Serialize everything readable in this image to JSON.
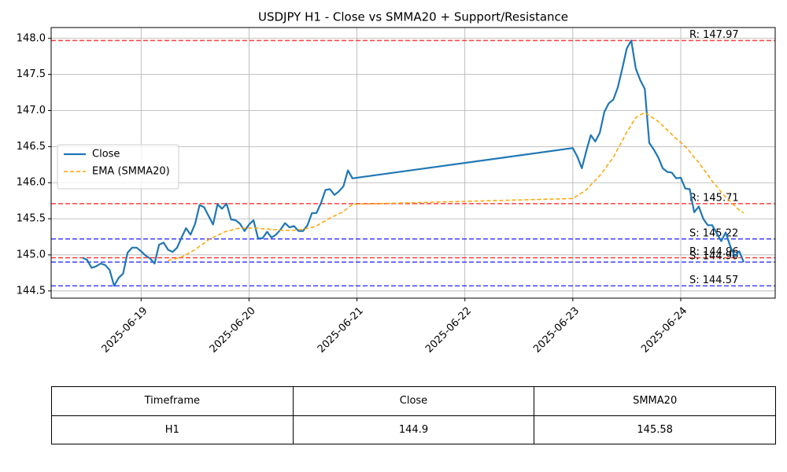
{
  "chart_data": {
    "type": "line",
    "title": "USDJPY H1 - Close vs SMMA20 + Support/Resistance",
    "x": [
      "2025-06-18 11:00",
      "2025-06-18 12:00",
      "2025-06-18 13:00",
      "2025-06-18 14:00",
      "2025-06-18 15:00",
      "2025-06-18 16:00",
      "2025-06-18 17:00",
      "2025-06-18 18:00",
      "2025-06-18 19:00",
      "2025-06-18 20:00",
      "2025-06-18 21:00",
      "2025-06-18 22:00",
      "2025-06-18 23:00",
      "2025-06-19 00:00",
      "2025-06-19 01:00",
      "2025-06-19 02:00",
      "2025-06-19 03:00",
      "2025-06-19 04:00",
      "2025-06-19 05:00",
      "2025-06-19 06:00",
      "2025-06-19 07:00",
      "2025-06-19 08:00",
      "2025-06-19 09:00",
      "2025-06-19 10:00",
      "2025-06-19 11:00",
      "2025-06-19 12:00",
      "2025-06-19 13:00",
      "2025-06-19 14:00",
      "2025-06-19 15:00",
      "2025-06-19 16:00",
      "2025-06-19 17:00",
      "2025-06-19 18:00",
      "2025-06-19 19:00",
      "2025-06-19 20:00",
      "2025-06-19 21:00",
      "2025-06-19 22:00",
      "2025-06-19 23:00",
      "2025-06-20 00:00",
      "2025-06-20 01:00",
      "2025-06-20 02:00",
      "2025-06-20 03:00",
      "2025-06-20 04:00",
      "2025-06-20 05:00",
      "2025-06-20 06:00",
      "2025-06-20 07:00",
      "2025-06-20 08:00",
      "2025-06-20 09:00",
      "2025-06-20 10:00",
      "2025-06-20 11:00",
      "2025-06-20 12:00",
      "2025-06-20 13:00",
      "2025-06-20 14:00",
      "2025-06-20 15:00",
      "2025-06-20 16:00",
      "2025-06-20 17:00",
      "2025-06-20 18:00",
      "2025-06-20 19:00",
      "2025-06-20 20:00",
      "2025-06-20 21:00",
      "2025-06-20 22:00",
      "2025-06-20 23:00",
      "2025-06-23 00:00",
      "2025-06-23 01:00",
      "2025-06-23 02:00",
      "2025-06-23 03:00",
      "2025-06-23 04:00",
      "2025-06-23 05:00",
      "2025-06-23 06:00",
      "2025-06-23 07:00",
      "2025-06-23 08:00",
      "2025-06-23 09:00",
      "2025-06-23 10:00",
      "2025-06-23 11:00",
      "2025-06-23 12:00",
      "2025-06-23 13:00",
      "2025-06-23 14:00",
      "2025-06-23 15:00",
      "2025-06-23 16:00",
      "2025-06-23 17:00",
      "2025-06-23 18:00",
      "2025-06-23 19:00",
      "2025-06-23 20:00",
      "2025-06-23 21:00",
      "2025-06-23 22:00",
      "2025-06-23 23:00",
      "2025-06-24 00:00",
      "2025-06-24 01:00",
      "2025-06-24 02:00",
      "2025-06-24 03:00",
      "2025-06-24 04:00",
      "2025-06-24 05:00",
      "2025-06-24 06:00",
      "2025-06-24 07:00",
      "2025-06-24 08:00",
      "2025-06-24 09:00",
      "2025-06-24 10:00",
      "2025-06-24 11:00",
      "2025-06-24 12:00",
      "2025-06-24 13:00",
      "2025-06-24 14:00"
    ],
    "series": [
      {
        "name": "Close",
        "color": "#1f77b4",
        "values": [
          144.96,
          144.93,
          144.82,
          144.84,
          144.88,
          144.86,
          144.79,
          144.57,
          144.68,
          144.74,
          145.03,
          145.1,
          145.1,
          145.05,
          144.99,
          144.95,
          144.88,
          145.14,
          145.17,
          145.07,
          145.04,
          145.1,
          145.24,
          145.37,
          145.28,
          145.43,
          145.69,
          145.66,
          145.54,
          145.42,
          145.7,
          145.64,
          145.71,
          145.49,
          145.48,
          145.43,
          145.33,
          145.42,
          145.48,
          145.23,
          145.23,
          145.32,
          145.24,
          145.28,
          145.35,
          145.44,
          145.38,
          145.4,
          145.33,
          145.33,
          145.41,
          145.58,
          145.58,
          145.72,
          145.9,
          145.91,
          145.83,
          145.88,
          145.95,
          146.17,
          146.06,
          146.48,
          146.36,
          146.2,
          146.44,
          146.66,
          146.57,
          146.69,
          146.98,
          147.1,
          147.15,
          147.32,
          147.58,
          147.86,
          147.97,
          147.58,
          147.42,
          147.3,
          146.55,
          146.46,
          146.35,
          146.2,
          146.15,
          146.14,
          146.06,
          146.07,
          145.92,
          145.91,
          145.59,
          145.67,
          145.5,
          145.41,
          145.41,
          145.3,
          145.19,
          145.31,
          145.12,
          144.98,
          145.05,
          144.9
        ]
      },
      {
        "name": "EMA (SMMA20)",
        "color": "#ffa500",
        "dashed": true,
        "values": [
          null,
          null,
          null,
          null,
          null,
          null,
          null,
          null,
          null,
          null,
          null,
          null,
          null,
          null,
          null,
          null,
          null,
          null,
          null,
          144.92,
          144.94,
          144.95,
          144.97,
          145.0,
          145.04,
          145.07,
          145.12,
          145.16,
          145.21,
          145.24,
          145.27,
          145.3,
          145.33,
          145.34,
          145.36,
          145.37,
          145.37,
          145.37,
          145.37,
          145.37,
          145.36,
          145.36,
          145.35,
          145.35,
          145.34,
          145.34,
          145.34,
          145.34,
          145.35,
          145.35,
          145.37,
          145.38,
          145.4,
          145.44,
          145.47,
          145.51,
          145.54,
          145.57,
          145.6,
          145.65,
          145.7,
          145.78,
          145.82,
          145.86,
          145.9,
          145.97,
          146.03,
          146.1,
          146.18,
          146.27,
          146.35,
          146.47,
          146.58,
          146.7,
          146.8,
          146.9,
          146.94,
          146.97,
          146.93,
          146.89,
          146.85,
          146.79,
          146.73,
          146.67,
          146.61,
          146.56,
          146.5,
          146.43,
          146.35,
          146.28,
          146.19,
          146.11,
          146.02,
          145.95,
          145.87,
          145.8,
          145.74,
          145.68,
          145.62,
          145.58
        ]
      }
    ],
    "levels": [
      {
        "label": "R: 147.97",
        "value": 147.97,
        "color": "#ff0000"
      },
      {
        "label": "R: 145.71",
        "value": 145.71,
        "color": "#ff0000"
      },
      {
        "label": "R: 144.96",
        "value": 144.96,
        "color": "#ff0000"
      },
      {
        "label": "S: 145.22",
        "value": 145.22,
        "color": "#0000ff"
      },
      {
        "label": "S: 144.90",
        "value": 144.9,
        "color": "#0000ff"
      },
      {
        "label": "S: 144.57",
        "value": 144.57,
        "color": "#0000ff"
      }
    ],
    "xlim": [
      "2025-06-18 04:00",
      "2025-06-24 21:00"
    ],
    "xticks": [
      {
        "value": "2025-06-19 00:00",
        "label": "2025-06-19"
      },
      {
        "value": "2025-06-20 00:00",
        "label": "2025-06-20"
      },
      {
        "value": "2025-06-21 00:00",
        "label": "2025-06-21"
      },
      {
        "value": "2025-06-22 00:00",
        "label": "2025-06-22"
      },
      {
        "value": "2025-06-23 00:00",
        "label": "2025-06-23"
      },
      {
        "value": "2025-06-24 00:00",
        "label": "2025-06-24"
      }
    ],
    "ylim": [
      144.4,
      148.15
    ],
    "yticks": [
      144.5,
      {
        "value": 145,
        "label": "145.0"
      },
      145.5,
      {
        "value": 146,
        "label": "146.0"
      },
      146.5,
      {
        "value": 147,
        "label": "147.0"
      },
      147.5,
      {
        "value": 148,
        "label": "148.0"
      }
    ],
    "grid": true,
    "legend": "center left"
  },
  "table": {
    "columns": [
      "Timeframe",
      "Close",
      "SMMA20"
    ],
    "rows": [
      [
        "H1",
        144.9,
        145.58
      ]
    ]
  }
}
